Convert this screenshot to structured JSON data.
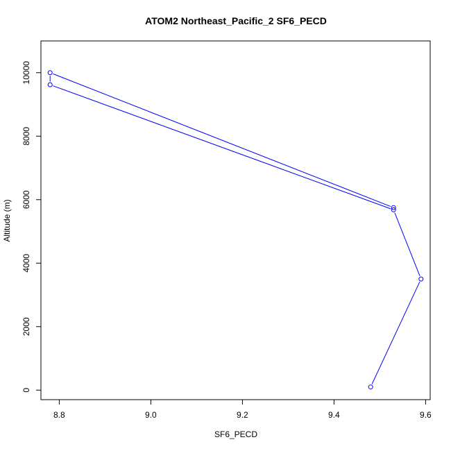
{
  "chart_data": {
    "type": "line",
    "title": "ATOM2 Northeast_Pacific_2 SF6_PECD",
    "xlabel": "SF6_PECD",
    "ylabel": "Altitude (m)",
    "xlim": [
      8.76,
      9.61
    ],
    "ylim": [
      -300,
      11000
    ],
    "xticks": [
      8.8,
      9.0,
      9.2,
      9.4,
      9.6
    ],
    "xtick_labels": [
      "8.8",
      "9.0",
      "9.2",
      "9.4",
      "9.6"
    ],
    "yticks": [
      0,
      2000,
      4000,
      6000,
      8000,
      10000
    ],
    "ytick_labels": [
      "0",
      "2000",
      "4000",
      "6000",
      "8000",
      "10000"
    ],
    "grid": false,
    "series": [
      {
        "color": "#0000ff",
        "marker": "open-circle",
        "x": [
          9.48,
          9.59,
          9.53,
          8.78,
          8.78,
          9.53
        ],
        "y": [
          100,
          3500,
          5680,
          9620,
          10000,
          5750
        ]
      }
    ]
  }
}
